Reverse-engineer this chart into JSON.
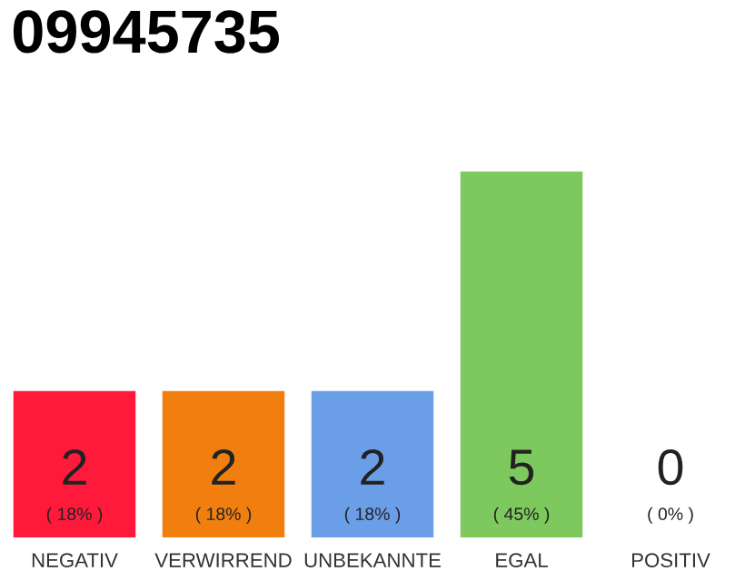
{
  "chart_data": {
    "type": "bar",
    "title": "09945735",
    "categories": [
      "NEGATIV",
      "VERWIRREND",
      "UNBEKANNTE",
      "EGAL",
      "POSITIV"
    ],
    "values": [
      2,
      2,
      2,
      5,
      0
    ],
    "colors": [
      "#ff1a3c",
      "#f07f0f",
      "#6a9fe8",
      "#7dc95e",
      "#d0d0d0"
    ],
    "value_labels": [
      "2\n( 18% )",
      "2\n( 18% )",
      "2\n( 18% )",
      "5\n( 45% )",
      "0\n( 0% )"
    ],
    "grid": false
  }
}
